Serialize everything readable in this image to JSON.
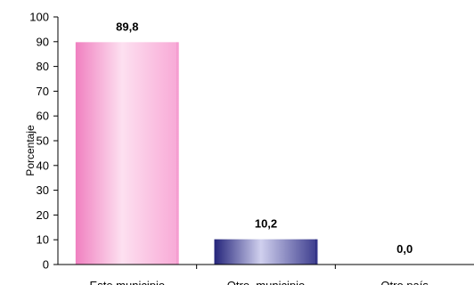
{
  "chart_data": {
    "type": "bar",
    "title": "",
    "xlabel": "",
    "ylabel": "Porcentaje",
    "ylim": [
      0,
      100
    ],
    "yticks": [
      0,
      10,
      20,
      30,
      40,
      50,
      60,
      70,
      80,
      90,
      100
    ],
    "grid": false,
    "legend": "none",
    "categories": [
      "Este municipio",
      "Otro  municipio",
      "Otro país"
    ],
    "values": [
      89.8,
      10.2,
      0.0
    ],
    "data_labels": [
      "89,8",
      "10,2",
      "0,0"
    ],
    "bar_styles": [
      {
        "edge": "#f080c0",
        "mid": "#fde0f0",
        "side": "#f8a8d6"
      },
      {
        "edge": "#24247a",
        "mid": "#d0d0ee",
        "side": "#3a3a8c"
      },
      {
        "edge": "#888888",
        "mid": "#dddddd",
        "side": "#aaaaaa"
      }
    ],
    "axis_color": "#000000"
  }
}
